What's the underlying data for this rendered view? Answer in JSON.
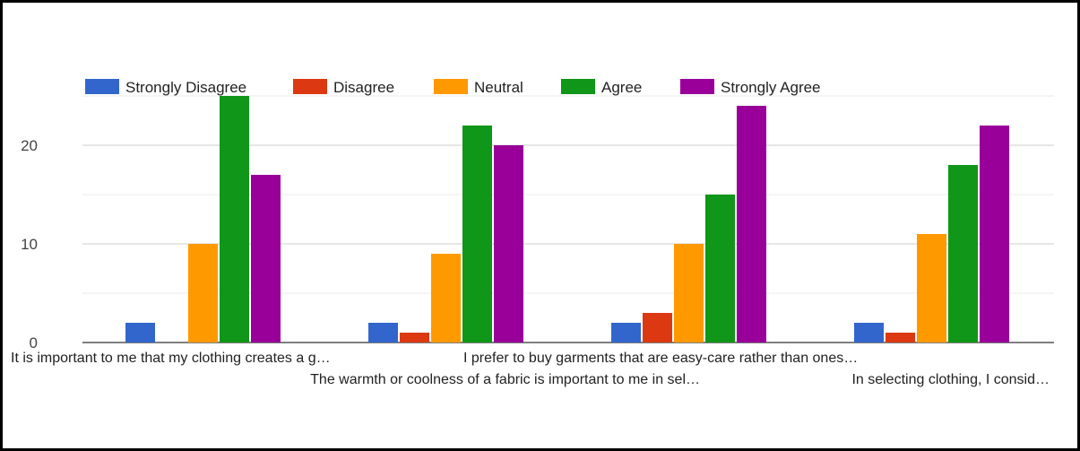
{
  "chart_data": {
    "type": "bar",
    "categories": [
      "It is important to me that my clothing creates a g…",
      "The warmth or coolness of a fabric is important to me in sel…",
      "I prefer to buy garments that are easy-care rather than ones…",
      "In selecting clothing, I consid…"
    ],
    "series": [
      {
        "name": "Strongly Disagree",
        "color": "#3366cc",
        "values": [
          2,
          2,
          2,
          2
        ]
      },
      {
        "name": "Disagree",
        "color": "#dc3912",
        "values": [
          0,
          1,
          3,
          1
        ]
      },
      {
        "name": "Neutral",
        "color": "#ff9900",
        "values": [
          10,
          9,
          10,
          11
        ]
      },
      {
        "name": "Agree",
        "color": "#109618",
        "values": [
          25,
          22,
          15,
          18
        ]
      },
      {
        "name": "Strongly Agree",
        "color": "#990099",
        "values": [
          17,
          20,
          24,
          22
        ]
      }
    ],
    "yticks": [
      0,
      10,
      20
    ],
    "ylim": [
      0,
      25
    ],
    "grid": true,
    "legend_position": "top"
  }
}
